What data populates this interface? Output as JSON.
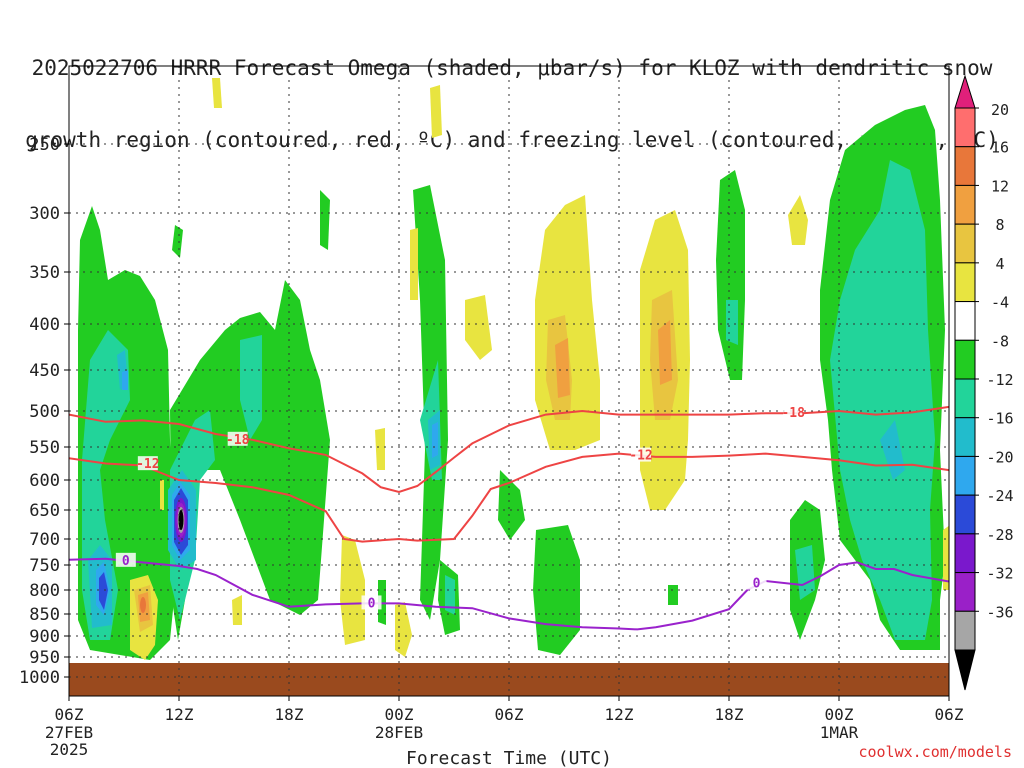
{
  "title_line1": "2025022706 HRRR Forecast Omega (shaded, μbar/s) for KLOZ with dendritic snow",
  "title_line2": "growth region (contoured, red, ºC) and freezing level (contoured, purple, ºC)",
  "xlabel": "Forecast Time (UTC)",
  "credit": "coolwx.com/models",
  "colorbar": {
    "labels": [
      "20",
      "16",
      "12",
      "8",
      "4",
      "-4",
      "-8",
      "-12",
      "-16",
      "-20",
      "-24",
      "-28",
      "-32",
      "-36"
    ],
    "colors": [
      "#ff6e6e",
      "#e8773a",
      "#f0a040",
      "#e8c540",
      "#e8e440",
      "#ffffff",
      "#22cc22",
      "#22d49a",
      "#22bccc",
      "#2fa8ee",
      "#2b4ad8",
      "#7a18cc",
      "#9a20c8",
      "#a6a6a6"
    ],
    "top_color": "#e0207a",
    "bottom_color": "#000000"
  },
  "ground_color": "#9a4a1e",
  "chart_data": {
    "type": "heatmap",
    "x_ticks": [
      {
        "hour": 0,
        "label": "06Z",
        "sub": "27FEB",
        "sub2": "2025"
      },
      {
        "hour": 6,
        "label": "12Z"
      },
      {
        "hour": 12,
        "label": "18Z"
      },
      {
        "hour": 18,
        "label": "00Z",
        "sub": "28FEB"
      },
      {
        "hour": 24,
        "label": "06Z"
      },
      {
        "hour": 30,
        "label": "12Z"
      },
      {
        "hour": 36,
        "label": "18Z"
      },
      {
        "hour": 42,
        "label": "00Z",
        "sub": "1MAR"
      },
      {
        "hour": 48,
        "label": "06Z"
      }
    ],
    "x_range": [
      0,
      48
    ],
    "y_ticks": [
      250,
      300,
      350,
      400,
      450,
      500,
      550,
      600,
      650,
      700,
      750,
      800,
      850,
      900,
      950,
      1000
    ],
    "y_range_hPa": [
      200,
      1030
    ],
    "ground_top_hPa": 965,
    "contours": [
      {
        "name": "-18",
        "color": "#ee4444",
        "label_at": [
          {
            "hour": 9.2,
            "hPa": 540
          },
          {
            "hour": 39.5,
            "hPa": 503
          }
        ],
        "points": [
          [
            0,
            505
          ],
          [
            2,
            515
          ],
          [
            4,
            513
          ],
          [
            6,
            518
          ],
          [
            8,
            532
          ],
          [
            10,
            540
          ],
          [
            12,
            552
          ],
          [
            14,
            562
          ],
          [
            16,
            590
          ],
          [
            17,
            612
          ],
          [
            18,
            620
          ],
          [
            19,
            610
          ],
          [
            20,
            588
          ],
          [
            21,
            566
          ],
          [
            22,
            545
          ],
          [
            24,
            520
          ],
          [
            26,
            505
          ],
          [
            28,
            500
          ],
          [
            30,
            505
          ],
          [
            32,
            505
          ],
          [
            34,
            505
          ],
          [
            36,
            505
          ],
          [
            38,
            503
          ],
          [
            40,
            503
          ],
          [
            42,
            500
          ],
          [
            44,
            505
          ],
          [
            46,
            502
          ],
          [
            48,
            495
          ]
        ]
      },
      {
        "name": "-12",
        "color": "#ee4444",
        "label_at": [
          {
            "hour": 4.3,
            "hPa": 576
          },
          {
            "hour": 31.2,
            "hPa": 563
          }
        ],
        "points": [
          [
            0,
            567
          ],
          [
            2,
            575
          ],
          [
            4,
            578
          ],
          [
            6,
            600
          ],
          [
            8,
            605
          ],
          [
            10,
            612
          ],
          [
            12,
            625
          ],
          [
            14,
            652
          ],
          [
            15,
            700
          ],
          [
            16,
            705
          ],
          [
            18,
            700
          ],
          [
            19,
            703
          ],
          [
            21,
            700
          ],
          [
            22,
            660
          ],
          [
            23,
            615
          ],
          [
            24,
            605
          ],
          [
            26,
            580
          ],
          [
            28,
            565
          ],
          [
            30,
            560
          ],
          [
            32,
            565
          ],
          [
            34,
            565
          ],
          [
            36,
            563
          ],
          [
            38,
            560
          ],
          [
            40,
            565
          ],
          [
            42,
            570
          ],
          [
            44,
            578
          ],
          [
            46,
            577
          ],
          [
            48,
            585
          ]
        ]
      },
      {
        "name": "0",
        "color": "#9a22cc",
        "label_at": [
          {
            "hour": 3.1,
            "hPa": 742
          },
          {
            "hour": 16.5,
            "hPa": 828
          },
          {
            "hour": 37.5,
            "hPa": 787
          }
        ],
        "points": [
          [
            0,
            740
          ],
          [
            2,
            738
          ],
          [
            4,
            745
          ],
          [
            6,
            752
          ],
          [
            7,
            758
          ],
          [
            8,
            770
          ],
          [
            10,
            810
          ],
          [
            12,
            835
          ],
          [
            14,
            830
          ],
          [
            16,
            828
          ],
          [
            18,
            828
          ],
          [
            20,
            835
          ],
          [
            22,
            838
          ],
          [
            24,
            860
          ],
          [
            26,
            873
          ],
          [
            28,
            880
          ],
          [
            30,
            883
          ],
          [
            31,
            885
          ],
          [
            32,
            880
          ],
          [
            34,
            865
          ],
          [
            36,
            840
          ],
          [
            37,
            800
          ],
          [
            38,
            782
          ],
          [
            40,
            790
          ],
          [
            41,
            772
          ],
          [
            42,
            750
          ],
          [
            43,
            745
          ],
          [
            44,
            758
          ],
          [
            45,
            758
          ],
          [
            46,
            770
          ],
          [
            48,
            783
          ]
        ]
      }
    ]
  }
}
